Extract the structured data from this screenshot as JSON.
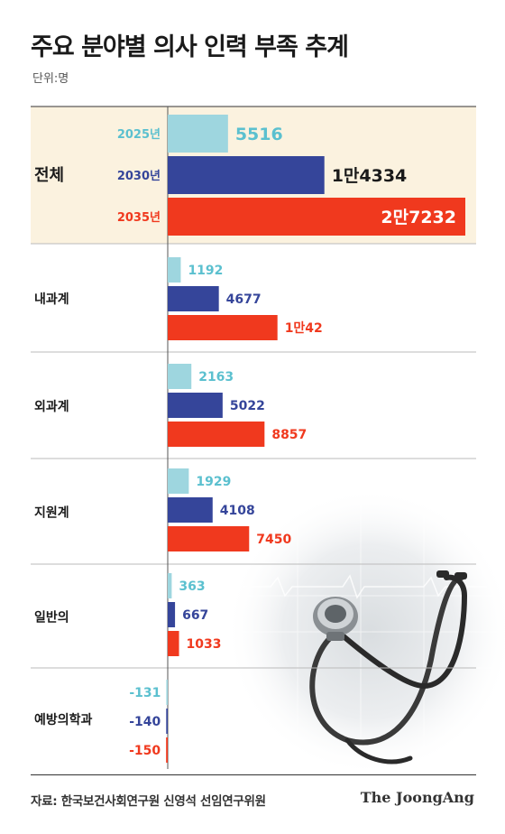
{
  "title": "주요 분야별 의사 인력 부족 추계",
  "unit": "단위:명",
  "source": "자료: 한국보건사회연구원 신영석 선임연구위원",
  "brand": "The JoongAng",
  "colors": {
    "y2025": "#9ed6df",
    "y2030": "#35459a",
    "y2035": "#f0391e",
    "highlight_bg": "#fbf2df",
    "label_2025": "#5bc0cf"
  },
  "chart_data": {
    "type": "bar",
    "orientation": "horizontal",
    "categories": [
      "전체",
      "내과계",
      "외과계",
      "지원계",
      "일반의",
      "예방의학과"
    ],
    "series": [
      {
        "name": "2025년",
        "values": [
          5516,
          1192,
          2163,
          1929,
          363,
          -131
        ],
        "labels": [
          "5516",
          "1192",
          "2163",
          "1929",
          "363",
          "-131"
        ]
      },
      {
        "name": "2030년",
        "values": [
          14334,
          4677,
          5022,
          4108,
          667,
          -140
        ],
        "labels": [
          "1만4334",
          "4677",
          "5022",
          "4108",
          "667",
          "-140"
        ]
      },
      {
        "name": "2035년",
        "values": [
          27232,
          10042,
          8857,
          7450,
          1033,
          -150
        ],
        "labels": [
          "2만7232",
          "1만42",
          "8857",
          "7450",
          "1033",
          "-150"
        ]
      }
    ]
  }
}
